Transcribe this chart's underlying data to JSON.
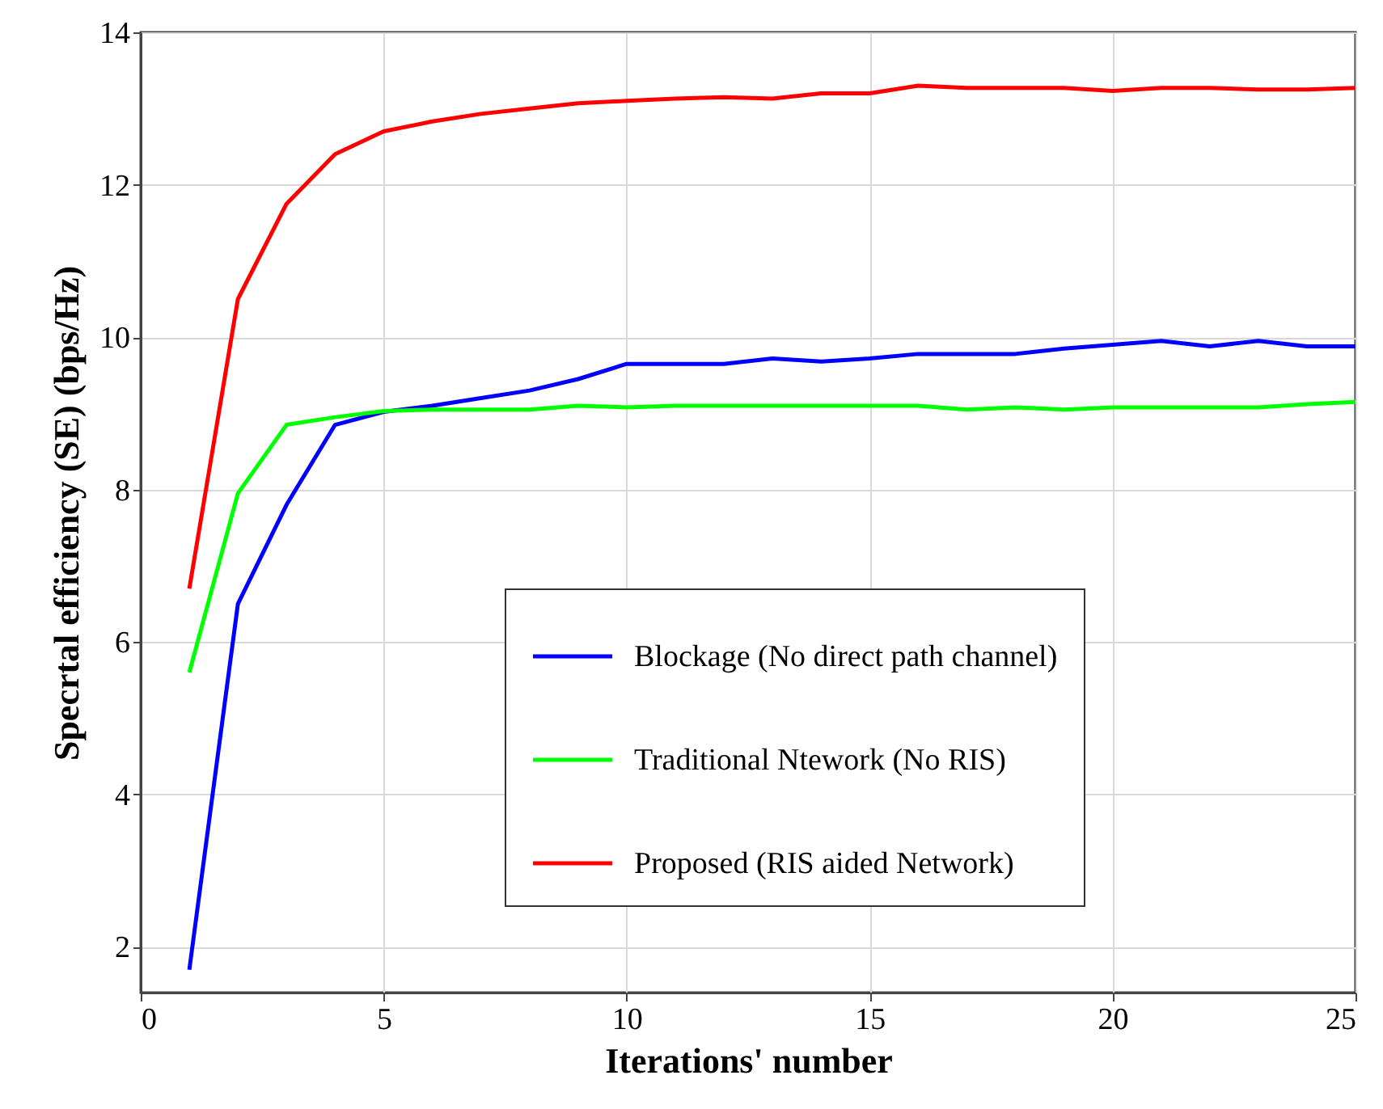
{
  "chart_data": {
    "type": "line",
    "xlabel": "Iterations' number",
    "ylabel": "Specrtal efficiency (SE) (bps/Hz)",
    "x": [
      1,
      2,
      3,
      4,
      5,
      6,
      7,
      8,
      9,
      10,
      11,
      12,
      13,
      14,
      15,
      16,
      17,
      18,
      19,
      20,
      21,
      22,
      23,
      24,
      25
    ],
    "series": [
      {
        "name": "Blockage (No direct path channel)",
        "color": "#0000ff",
        "values": [
          1.7,
          6.5,
          7.8,
          8.85,
          9.02,
          9.1,
          9.2,
          9.3,
          9.45,
          9.65,
          9.65,
          9.65,
          9.72,
          9.68,
          9.72,
          9.78,
          9.78,
          9.78,
          9.85,
          9.9,
          9.95,
          9.88,
          9.95,
          9.88,
          9.88
        ]
      },
      {
        "name": "Traditional  Ntework (No RIS)",
        "color": "#00ff00",
        "values": [
          5.6,
          7.95,
          8.85,
          8.95,
          9.03,
          9.05,
          9.05,
          9.05,
          9.1,
          9.08,
          9.1,
          9.1,
          9.1,
          9.1,
          9.1,
          9.1,
          9.05,
          9.08,
          9.05,
          9.08,
          9.08,
          9.08,
          9.08,
          9.12,
          9.15
        ]
      },
      {
        "name": "Proposed (RIS aided Network)",
        "color": "#ff0000",
        "values": [
          6.7,
          10.5,
          11.75,
          12.4,
          12.7,
          12.83,
          12.93,
          13.0,
          13.07,
          13.1,
          13.13,
          13.15,
          13.13,
          13.2,
          13.2,
          13.3,
          13.27,
          13.27,
          13.27,
          13.23,
          13.27,
          13.27,
          13.25,
          13.25,
          13.27
        ]
      }
    ],
    "xlim": [
      0,
      25
    ],
    "xticks": [
      0,
      5,
      10,
      15,
      20,
      25
    ],
    "ylim": [
      1.4,
      14
    ],
    "yticks": [
      2,
      4,
      6,
      8,
      10,
      12,
      14
    ],
    "grid": true,
    "legend": "bottom right",
    "marker": "none",
    "line_style": "solid"
  }
}
